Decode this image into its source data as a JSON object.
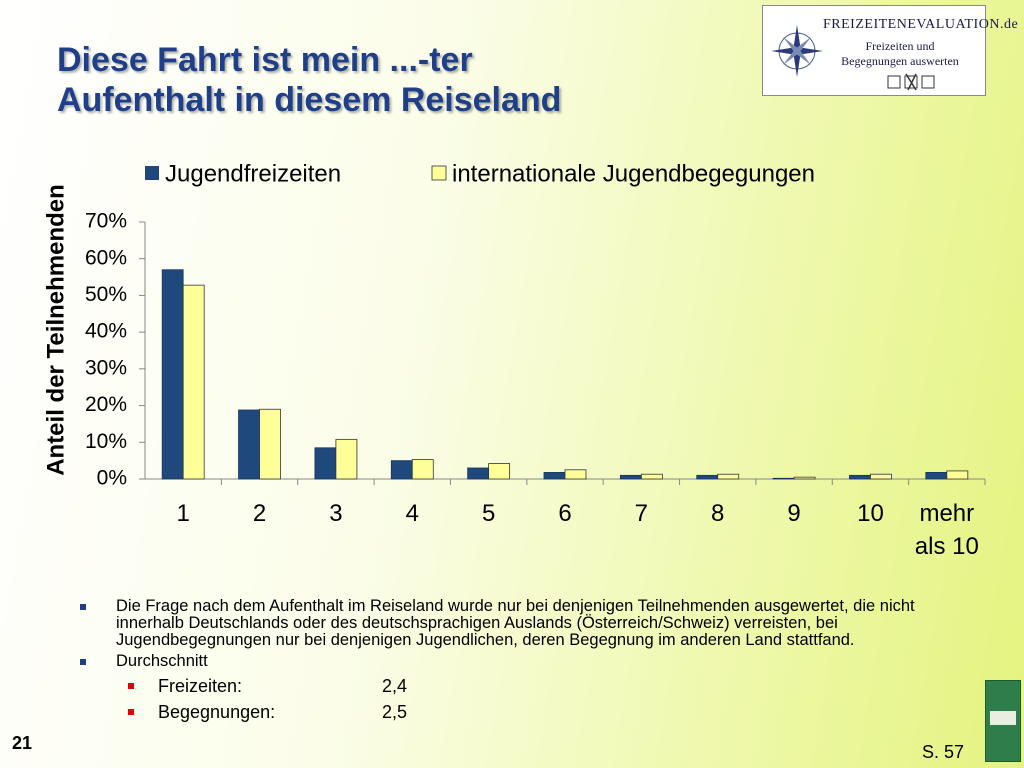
{
  "slide": {
    "title_lines": [
      "Diese Fahrt ist mein ...-ter",
      "Aufenthalt in diesem Reiseland"
    ],
    "logo": {
      "brand": "FREIZEITENEVALUATION.de",
      "lines": [
        "Freizeiten und",
        "Begegnungen auswerten"
      ]
    },
    "notes": [
      "Die Frage nach dem Aufenthalt im Reiseland wurde nur bei denjenigen Teilnehmenden ausgewertet, die nicht innerhalb Deutschlands oder des deutschsprachigen Auslands (Österreich/Schweiz) verreisten, bei Jugendbegegnungen nur bei denjenigen Jugendlichen, deren Begegnung im anderen Land stattfand.",
      "Durchschnitt"
    ],
    "averages": [
      {
        "label": "Freizeiten:",
        "value": "2,4"
      },
      {
        "label": "Begegnungen:",
        "value": "2,5"
      }
    ],
    "page_number": "21",
    "source": "S. 57"
  },
  "chart_data": {
    "type": "bar",
    "y_label": "Anteil der Teilnehmenden",
    "categories": [
      "1",
      "2",
      "3",
      "4",
      "5",
      "6",
      "7",
      "8",
      "9",
      "10",
      "mehr als 10"
    ],
    "series": [
      {
        "name": "Jugendfreizeiten",
        "color": "#1f497d",
        "values": [
          57,
          18.8,
          8.5,
          5,
          3,
          1.8,
          1,
          1,
          0.2,
          1,
          1.8
        ]
      },
      {
        "name": "internationale Jugendbegegungen",
        "color": "#ffff99",
        "values": [
          52.8,
          19,
          10.8,
          5.3,
          4.2,
          2.5,
          1.3,
          1.3,
          0.5,
          1.3,
          2.2
        ]
      }
    ],
    "ylim": [
      0,
      70
    ],
    "yticks": [
      {
        "value": 0,
        "label": "0%"
      },
      {
        "value": 10,
        "label": "10%"
      },
      {
        "value": 20,
        "label": "20%"
      },
      {
        "value": 30,
        "label": "30%"
      },
      {
        "value": 40,
        "label": "40%"
      },
      {
        "value": 50,
        "label": "50%"
      },
      {
        "value": 60,
        "label": "60%"
      },
      {
        "value": 70,
        "label": "70%"
      }
    ],
    "grid": false
  }
}
